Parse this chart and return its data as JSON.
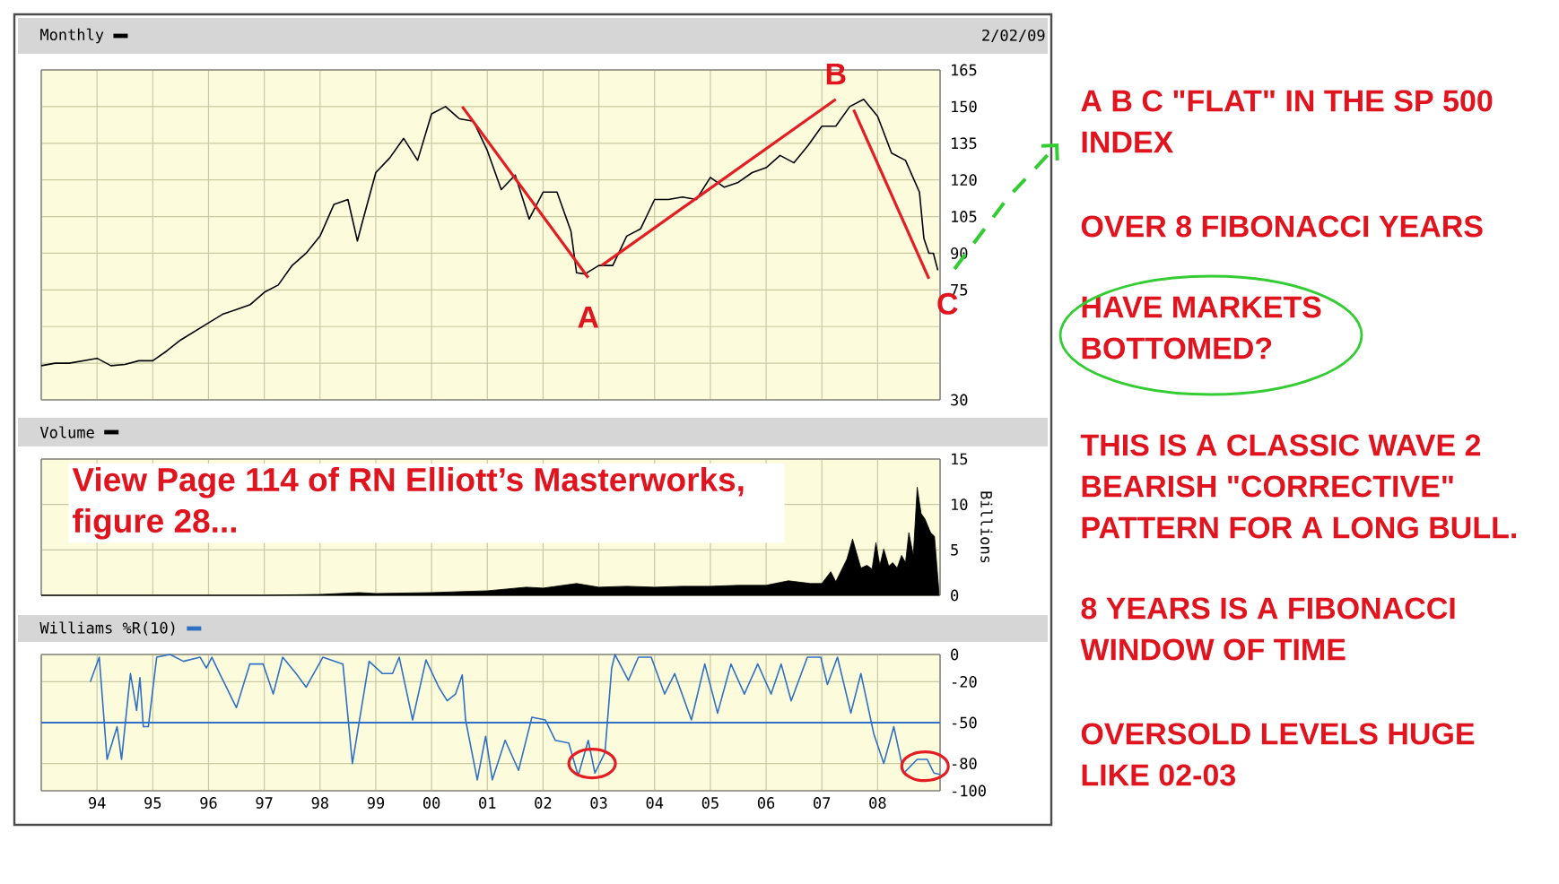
{
  "chart_data": [
    {
      "type": "line",
      "title": "Monthly",
      "annotations": [
        "2/02/09",
        {
          "text": "A",
          "x": 2002.81,
          "y": 80
        },
        {
          "text": "B",
          "x": 2007.25,
          "y": 153
        },
        {
          "text": "C",
          "x": 2008.92,
          "y": 79.6
        }
      ],
      "series": [
        {
          "color": "#000000",
          "x": [
            1993.0,
            1993.25,
            1993.5,
            1993.75,
            1994.0,
            1994.25,
            1994.5,
            1994.75,
            1995.0,
            1995.25,
            1995.5,
            1995.75,
            1996.0,
            1996.25,
            1996.5,
            1996.75,
            1997.0,
            1997.25,
            1997.5,
            1997.75,
            1998.0,
            1998.25,
            1998.5,
            1998.67,
            1998.75,
            1999.0,
            1999.25,
            1999.5,
            1999.75,
            2000.0,
            2000.25,
            2000.5,
            2000.75,
            2001.0,
            2001.25,
            2001.5,
            2001.75,
            2002.0,
            2002.25,
            2002.5,
            2002.6,
            2002.75,
            2003.0,
            2003.25,
            2003.5,
            2003.75,
            2004.0,
            2004.25,
            2004.5,
            2004.75,
            2005.0,
            2005.25,
            2005.5,
            2005.75,
            2006.0,
            2006.25,
            2006.5,
            2006.75,
            2007.0,
            2007.25,
            2007.5,
            2007.75,
            2008.0,
            2008.25,
            2008.5,
            2008.75,
            2008.83,
            2008.92,
            2009.0,
            2009.08
          ],
          "values": [
            44,
            45,
            45,
            46,
            47,
            44,
            44.5,
            46,
            46,
            50,
            54.5,
            58,
            61.5,
            65,
            67,
            69,
            74,
            77,
            85,
            90,
            97,
            110,
            112,
            95,
            102,
            123,
            129,
            137,
            128,
            147,
            150,
            145,
            144,
            132,
            116,
            122,
            104,
            115,
            115,
            99,
            82,
            81.5,
            85,
            85,
            97,
            100,
            112,
            112,
            113,
            112,
            121,
            117,
            119,
            123,
            125,
            130,
            127,
            134,
            142,
            142,
            150,
            153,
            146,
            131,
            128,
            115,
            96,
            90,
            90,
            83
          ]
        },
        {
          "color": "#e31d23",
          "x": [
            2000.55,
            2002.81
          ],
          "values": [
            150,
            80
          ]
        },
        {
          "color": "#e31d23",
          "x": [
            2003.05,
            2007.25
          ],
          "values": [
            85,
            153
          ]
        },
        {
          "color": "#e31d23",
          "x": [
            2007.57,
            2008.92
          ],
          "values": [
            148.7,
            79.6
          ]
        }
      ],
      "xlim": [
        1993.0,
        2009.12
      ],
      "ylim": [
        30,
        165
      ],
      "xticks": [
        {
          "value": 1994,
          "label": null
        },
        {
          "value": 1995,
          "label": null
        },
        {
          "value": 1996,
          "label": null
        },
        {
          "value": 1997,
          "label": null
        },
        {
          "value": 1998,
          "label": null
        },
        {
          "value": 1999,
          "label": null
        },
        {
          "value": 2000,
          "label": null
        },
        {
          "value": 2001,
          "label": null
        },
        {
          "value": 2002,
          "label": null
        },
        {
          "value": 2003,
          "label": null
        },
        {
          "value": 2004,
          "label": null
        },
        {
          "value": 2005,
          "label": null
        },
        {
          "value": 2006,
          "label": null
        },
        {
          "value": 2007,
          "label": null
        },
        {
          "value": 2008,
          "label": null
        }
      ],
      "yticks": [
        30,
        {
          "value": 45,
          "label": null
        },
        {
          "value": 60,
          "label": null
        },
        75,
        90,
        105,
        120,
        135,
        150,
        165
      ],
      "grid": true,
      "tick_labels": "y"
    },
    {
      "type": "area",
      "title": "Volume",
      "ylabel": "Billions",
      "annotations": [
        "View Page 114 of RN Elliott’s Masterworks, figure 28..."
      ],
      "series": [
        {
          "color": "#000000",
          "x": [
            1993.0,
            1996.0,
            1997.0,
            1998.0,
            1998.7,
            1999.0,
            2000.0,
            2001.0,
            2001.7,
            2002.0,
            2002.6,
            2003.0,
            2003.5,
            2004.0,
            2004.5,
            2005.0,
            2005.5,
            2006.0,
            2006.4,
            2006.8,
            2007.0,
            2007.16,
            2007.25,
            2007.45,
            2007.55,
            2007.7,
            2007.81,
            2007.9,
            2007.97,
            2008.04,
            2008.11,
            2008.2,
            2008.27,
            2008.35,
            2008.43,
            2008.5,
            2008.56,
            2008.64,
            2008.71,
            2008.78,
            2008.85,
            2008.95,
            2009.02,
            2009.1
          ],
          "values": [
            0,
            0,
            0,
            0.1,
            0.3,
            0.2,
            0.3,
            0.5,
            0.9,
            0.8,
            1.3,
            0.9,
            1.0,
            0.9,
            1.0,
            1.0,
            1.1,
            1.1,
            1.6,
            1.3,
            1.3,
            2.6,
            1.5,
            4.0,
            6.2,
            3.0,
            3.3,
            2.9,
            5.8,
            3.3,
            5.1,
            3.2,
            3.6,
            3.0,
            4.4,
            3.6,
            6.9,
            4.4,
            11.9,
            9.0,
            8.4,
            6.9,
            6.5,
            0.4
          ]
        }
      ],
      "xlim": [
        1993.0,
        2009.12
      ],
      "ylim": [
        0,
        15
      ],
      "xticks": [
        {
          "value": 1994,
          "label": null
        },
        {
          "value": 1995,
          "label": null
        },
        {
          "value": 1996,
          "label": null
        },
        {
          "value": 1997,
          "label": null
        },
        {
          "value": 1998,
          "label": null
        },
        {
          "value": 1999,
          "label": null
        },
        {
          "value": 2000,
          "label": null
        },
        {
          "value": 2001,
          "label": null
        },
        {
          "value": 2002,
          "label": null
        },
        {
          "value": 2003,
          "label": null
        },
        {
          "value": 2004,
          "label": null
        },
        {
          "value": 2005,
          "label": null
        },
        {
          "value": 2006,
          "label": null
        },
        {
          "value": 2007,
          "label": null
        },
        {
          "value": 2008,
          "label": null
        }
      ],
      "yticks": [
        0,
        5,
        10,
        15
      ],
      "grid": true,
      "tick_labels": "y"
    },
    {
      "type": "line",
      "title": "Williams %R(10)",
      "series": [
        {
          "color": "#2f6fc4",
          "x": [
            1993.88,
            1994.04,
            1994.18,
            1994.36,
            1994.44,
            1994.6,
            1994.71,
            1994.77,
            1994.83,
            1994.92,
            1995.07,
            1995.31,
            1995.55,
            1995.85,
            1995.96,
            1996.06,
            1996.2,
            1996.5,
            1996.74,
            1996.98,
            1997.16,
            1997.33,
            1997.57,
            1997.75,
            1998.05,
            1998.41,
            1998.58,
            1998.88,
            1999.12,
            1999.3,
            1999.42,
            1999.66,
            1999.9,
            2000.13,
            2000.28,
            2000.43,
            2000.55,
            2000.61,
            2000.82,
            2000.97,
            2001.09,
            2001.32,
            2001.56,
            2001.8,
            2002.04,
            2002.22,
            2002.46,
            2002.63,
            2002.81,
            2002.93,
            2003.11,
            2003.23,
            2003.29,
            2003.53,
            2003.71,
            2003.94,
            2004.18,
            2004.36,
            2004.66,
            2004.9,
            2005.13,
            2005.37,
            2005.61,
            2005.85,
            2006.09,
            2006.27,
            2006.45,
            2006.74,
            2006.98,
            2007.1,
            2007.28,
            2007.52,
            2007.7,
            2007.93,
            2008.11,
            2008.29,
            2008.47,
            2008.71,
            2008.89,
            2009.01,
            2009.12
          ],
          "values": [
            -20,
            -2,
            -77,
            -53,
            -77,
            -14,
            -41,
            -17,
            -53,
            -53,
            -2,
            0,
            -5,
            -2,
            -10,
            -2,
            -14,
            -39,
            -7,
            -7,
            -29,
            -2,
            -14,
            -24,
            -2,
            -7,
            -80,
            -5,
            -14,
            -14,
            -2,
            -48,
            -4,
            -24,
            -34,
            -29,
            -15,
            -48,
            -92,
            -60,
            -92,
            -63,
            -85,
            -46,
            -48,
            -63,
            -65,
            -89,
            -63,
            -87,
            -72,
            -10,
            0,
            -19,
            -2,
            -2,
            -29,
            -14,
            -48,
            -7,
            -43,
            -7,
            -29,
            -7,
            -29,
            -7,
            -34,
            -2,
            -2,
            -22,
            -2,
            -43,
            -14,
            -58,
            -80,
            -53,
            -87,
            -77,
            -77,
            -87,
            -88
          ]
        }
      ],
      "ref_lines": [
        {
          "axis": "y",
          "value": -50,
          "color": "#2f6fc4"
        }
      ],
      "xlim": [
        1993.0,
        2009.12
      ],
      "ylim": [
        -100,
        0
      ],
      "xticks": [
        {
          "value": 1994,
          "label": "94"
        },
        {
          "value": 1995,
          "label": "95"
        },
        {
          "value": 1996,
          "label": "96"
        },
        {
          "value": 1997,
          "label": "97"
        },
        {
          "value": 1998,
          "label": "98"
        },
        {
          "value": 1999,
          "label": "99"
        },
        {
          "value": 2000,
          "label": "00"
        },
        {
          "value": 2001,
          "label": "01"
        },
        {
          "value": 2002,
          "label": "02"
        },
        {
          "value": 2003,
          "label": "03"
        },
        {
          "value": 2004,
          "label": "04"
        },
        {
          "value": 2005,
          "label": "05"
        },
        {
          "value": 2006,
          "label": "06"
        },
        {
          "value": 2007,
          "label": "07"
        },
        {
          "value": 2008,
          "label": "08"
        }
      ],
      "yticks": [
        0,
        -20,
        -50,
        -80,
        -100
      ],
      "grid": true
    },
    {
      "type": "other",
      "annotations": [
        "A B C \"FLAT\" IN THE SP 500 INDEX",
        "OVER 8 FIBONACCI YEARS",
        "HAVE MARKETS BOTTOMED?",
        "THIS IS A CLASSIC WAVE 2 BEARISH \"CORRECTIVE\" PATTERN FOR A LONG BULL.",
        "8 YEARS IS A FIBONACCI WINDOW OF TIME",
        "OVERSOLD LEVELS HUGE LIKE 02-03"
      ]
    }
  ]
}
